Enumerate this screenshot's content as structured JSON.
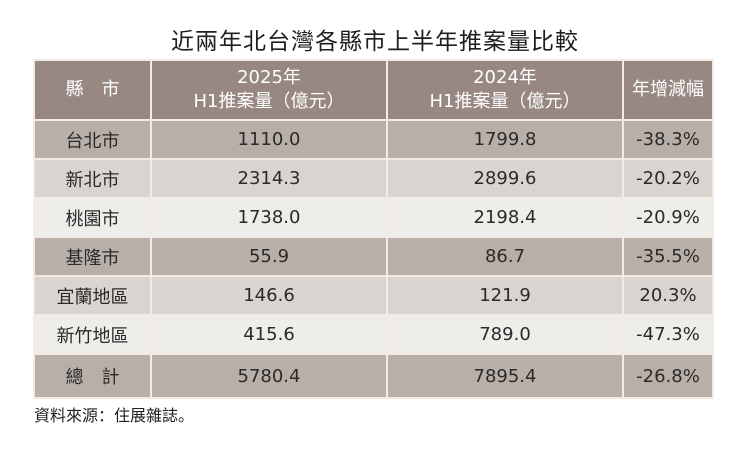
{
  "title": "近兩年北台灣各縣市上半年推案量比較",
  "table": {
    "headers": {
      "county": "縣市",
      "y2025_line1": "2025年",
      "y2025_line2": "H1推案量（億元）",
      "y2024_line1": "2024年",
      "y2024_line2": "H1推案量（億元）",
      "change": "年增減幅"
    },
    "rows": [
      {
        "county": "台北市",
        "y2025": "1110.0",
        "y2024": "1799.8",
        "change": "-38.3%"
      },
      {
        "county": "新北市",
        "y2025": "2314.3",
        "y2024": "2899.6",
        "change": "-20.2%"
      },
      {
        "county": "桃園市",
        "y2025": "1738.0",
        "y2024": "2198.4",
        "change": "-20.9%"
      },
      {
        "county": "基隆市",
        "y2025": "55.9",
        "y2024": "86.7",
        "change": "-35.5%"
      },
      {
        "county": "宜蘭地區",
        "y2025": "146.6",
        "y2024": "121.9",
        "change": "20.3%"
      },
      {
        "county": "新竹地區",
        "y2025": "415.6",
        "y2024": "789.0",
        "change": "-47.3%"
      }
    ],
    "total": {
      "county": "總計",
      "y2025": "5780.4",
      "y2024": "7895.4",
      "change": "-26.8%"
    }
  },
  "source": "資料來源：住展雜誌。",
  "colors": {
    "header_bg": "#978982",
    "row_dark": "#b8afa8",
    "row_mid": "#d9d4d0",
    "row_light": "#efedea",
    "grid": "#f2ebe4"
  }
}
